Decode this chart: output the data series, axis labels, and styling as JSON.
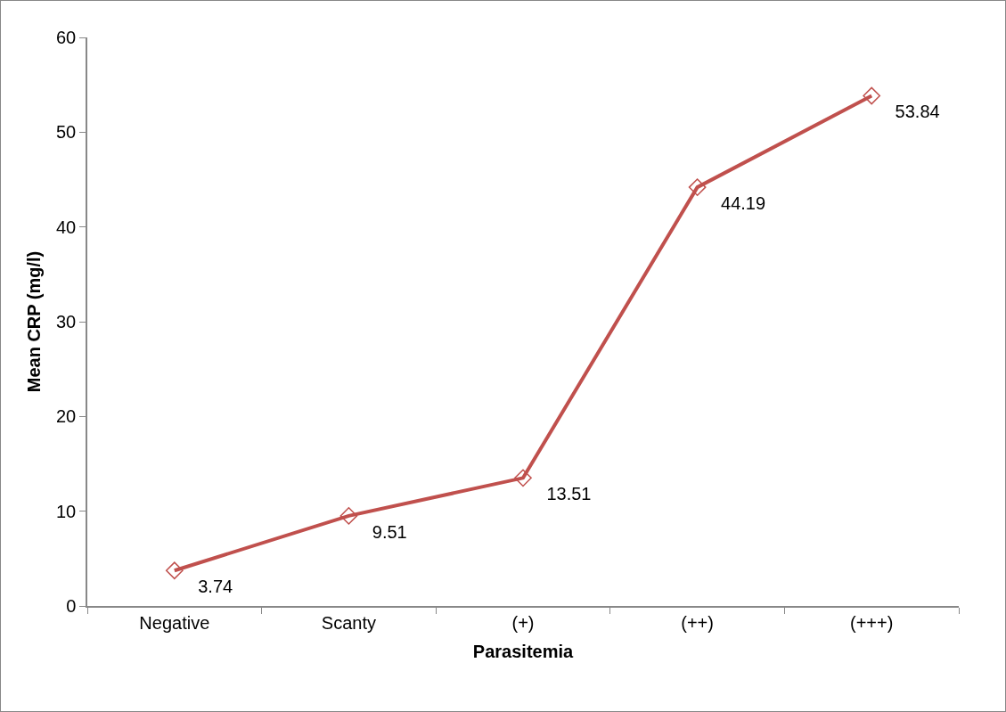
{
  "chart_data": {
    "type": "line",
    "xlabel": "Parasitemia",
    "ylabel": "Mean CRP (mg/l)",
    "categories": [
      "Negative",
      "Scanty",
      "(+)",
      "(++)",
      "(+++)"
    ],
    "series": [
      {
        "color": "#c0504d",
        "values": [
          3.74,
          9.51,
          13.51,
          44.19,
          53.84
        ]
      }
    ],
    "ylim": [
      0,
      60
    ],
    "yticks": [
      0,
      10,
      20,
      30,
      40,
      50,
      60
    ],
    "marker": "diamond",
    "line_style": "solid",
    "data_labels": true,
    "grid": false
  }
}
